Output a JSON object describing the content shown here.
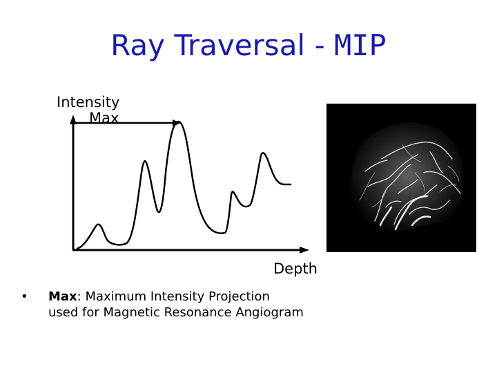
{
  "slide": {
    "title_main": "Ray Traversal -",
    "title_suffix": "MIP"
  },
  "plot": {
    "y_axis_label": "Intensity",
    "max_label": "Max",
    "x_axis_label": "Depth"
  },
  "bullet": {
    "marker": "•",
    "term": "Max",
    "line1_rest": ": Maximum Intensity Projection",
    "line2": "used for Magnetic Resonance Angiogram"
  }
}
